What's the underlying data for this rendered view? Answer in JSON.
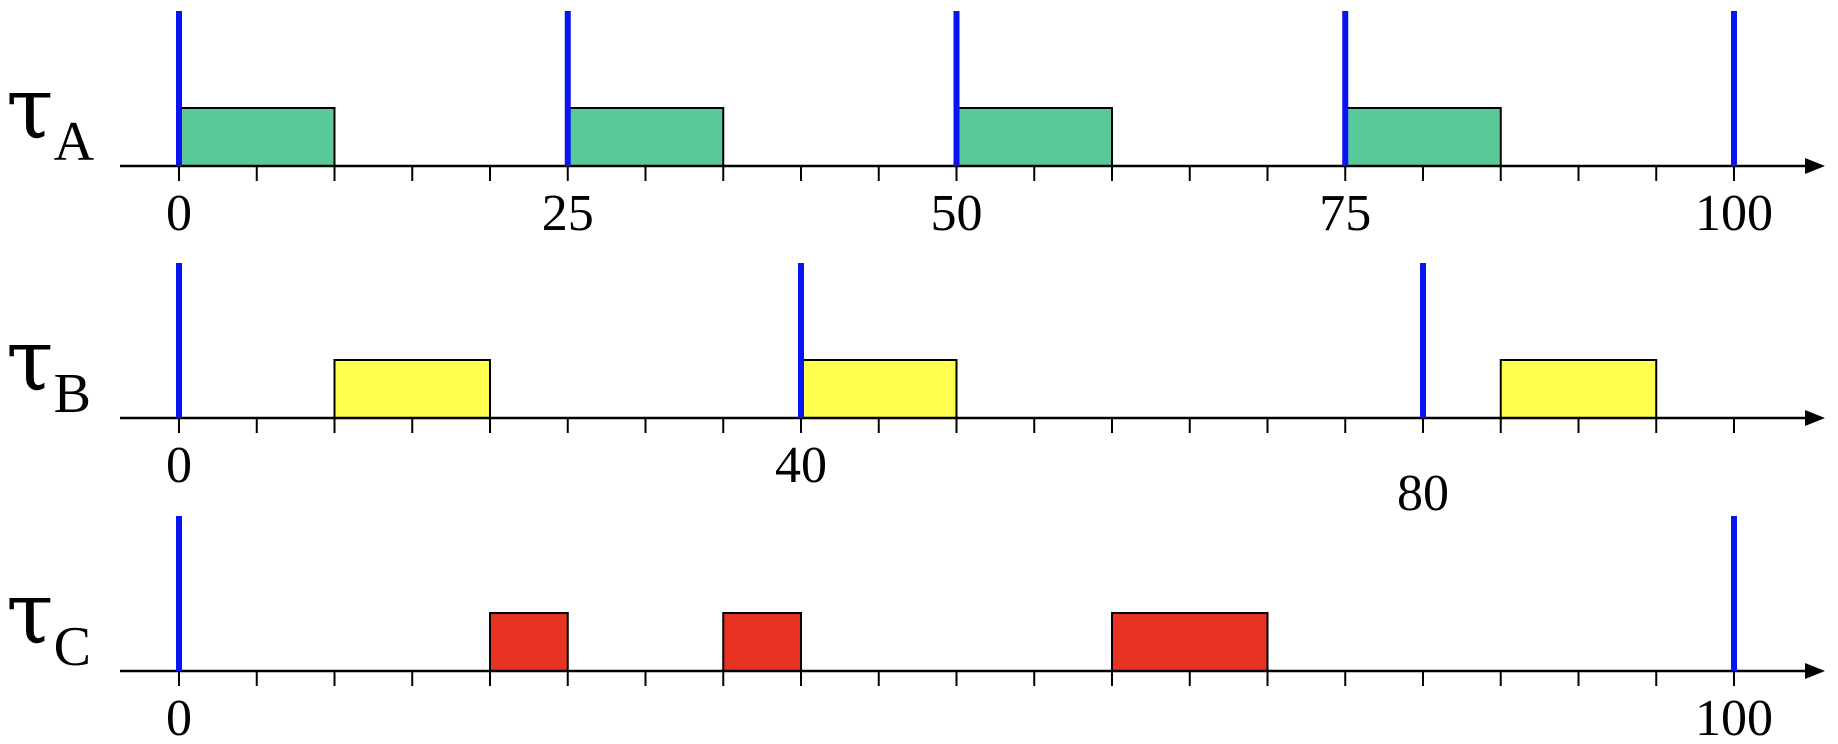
{
  "timeline": {
    "x_range": [
      0,
      106
    ],
    "axis_ticks_every": 5,
    "colors": {
      "release_line": "#0a14f0",
      "axis": "#000000",
      "block_outline": "#000000"
    },
    "tasks": [
      {
        "greek": "τ",
        "subscript": "A",
        "color": "#5ac99a",
        "releases": [
          0,
          25,
          50,
          75,
          100
        ],
        "blocks": [
          [
            0,
            10
          ],
          [
            25,
            35
          ],
          [
            50,
            60
          ],
          [
            75,
            85
          ]
        ],
        "tick_labels": [
          {
            "value": 0,
            "text": "0"
          },
          {
            "value": 25,
            "text": "25"
          },
          {
            "value": 50,
            "text": "50"
          },
          {
            "value": 75,
            "text": "75"
          },
          {
            "value": 100,
            "text": "100"
          }
        ]
      },
      {
        "greek": "τ",
        "subscript": "B",
        "color": "#ffff4d",
        "releases": [
          0,
          40,
          80
        ],
        "blocks": [
          [
            10,
            20
          ],
          [
            40,
            50
          ],
          [
            85,
            95
          ]
        ],
        "tick_labels": [
          {
            "value": 0,
            "text": "0"
          },
          {
            "value": 40,
            "text": "40"
          },
          {
            "value": 80,
            "text": "80",
            "lowered": true
          }
        ]
      },
      {
        "greek": "τ",
        "subscript": "C",
        "color": "#e83323",
        "releases": [
          0,
          100
        ],
        "blocks": [
          [
            20,
            25
          ],
          [
            35,
            40
          ],
          [
            60,
            70
          ]
        ],
        "tick_labels": [
          {
            "value": 0,
            "text": "0"
          },
          {
            "value": 100,
            "text": "100"
          }
        ]
      }
    ]
  }
}
